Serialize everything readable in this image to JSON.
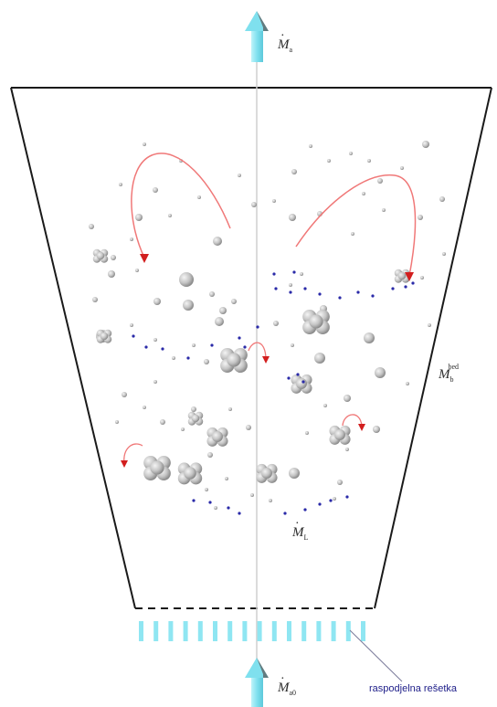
{
  "labels": {
    "m_a_sym": "M",
    "m_a_sub": "a",
    "m_b_sym": "M",
    "m_b_sub": "b",
    "m_b_sup": "bed",
    "m_l_sym": "M",
    "m_l_sub": "L",
    "m_a0_sym": "M",
    "m_a0_sub": "a0",
    "grid_label": "raspodjelna rešetka"
  },
  "colors": {
    "outline": "#1a1a1a",
    "axis": "#c8c8c8",
    "flow_arrow": "#8fe6f2",
    "flow_arrow_dark": "#555555",
    "circulation": "#f07878",
    "arrow_head": "#d21e1e",
    "particle": "#bdbdbd",
    "particle_dark": "#8a8a8a",
    "blue_dot": "#2a2aa8",
    "grid_text": "#20208a"
  },
  "icons": {
    "inflow_arrow": "up-arrow-icon",
    "outflow_arrow": "up-arrow-icon",
    "grid_jets": "air-jet-icon"
  }
}
